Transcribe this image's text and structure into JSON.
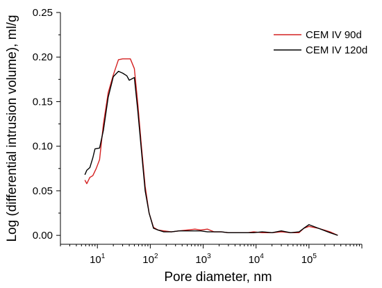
{
  "chart_data": {
    "type": "line",
    "title": "",
    "xlabel": "Pore diameter, nm",
    "ylabel": "Log (differential intrusion volume), ml/g",
    "x_scale": "log",
    "xlim": [
      2,
      1000000
    ],
    "ylim": [
      -0.01,
      0.25
    ],
    "x_ticks": [
      {
        "value": 10,
        "base": "10",
        "exp": "1"
      },
      {
        "value": 100,
        "base": "10",
        "exp": "2"
      },
      {
        "value": 1000,
        "base": "10",
        "exp": "3"
      },
      {
        "value": 10000,
        "base": "10",
        "exp": "4"
      },
      {
        "value": 100000,
        "base": "10",
        "exp": "5"
      }
    ],
    "y_ticks": [
      {
        "value": 0.0,
        "label": "0.00"
      },
      {
        "value": 0.05,
        "label": "0.05"
      },
      {
        "value": 0.1,
        "label": "0.10"
      },
      {
        "value": 0.15,
        "label": "0.15"
      },
      {
        "value": 0.2,
        "label": "0.20"
      },
      {
        "value": 0.25,
        "label": "0.25"
      }
    ],
    "grid": false,
    "legend_position": "top-right",
    "series": [
      {
        "name": "CEM IV 90d",
        "color": "#d42020",
        "points": [
          [
            5.8,
            0.062
          ],
          [
            6.3,
            0.058
          ],
          [
            7.2,
            0.065
          ],
          [
            8.2,
            0.067
          ],
          [
            9.5,
            0.075
          ],
          [
            11,
            0.085
          ],
          [
            13,
            0.125
          ],
          [
            16,
            0.16
          ],
          [
            20,
            0.18
          ],
          [
            25,
            0.197
          ],
          [
            30,
            0.198
          ],
          [
            36,
            0.198
          ],
          [
            42,
            0.198
          ],
          [
            50,
            0.187
          ],
          [
            58,
            0.148
          ],
          [
            68,
            0.1
          ],
          [
            80,
            0.055
          ],
          [
            95,
            0.025
          ],
          [
            115,
            0.009
          ],
          [
            140,
            0.006
          ],
          [
            180,
            0.005
          ],
          [
            250,
            0.004
          ],
          [
            350,
            0.005
          ],
          [
            500,
            0.006
          ],
          [
            700,
            0.007
          ],
          [
            900,
            0.006
          ],
          [
            1200,
            0.007
          ],
          [
            1600,
            0.004
          ],
          [
            2200,
            0.004
          ],
          [
            3000,
            0.003
          ],
          [
            4000,
            0.003
          ],
          [
            5000,
            0.003
          ],
          [
            7000,
            0.003
          ],
          [
            9000,
            0.004
          ],
          [
            13000,
            0.003
          ],
          [
            20000,
            0.003
          ],
          [
            30000,
            0.004
          ],
          [
            45000,
            0.003
          ],
          [
            65000,
            0.003
          ],
          [
            80000,
            0.008
          ],
          [
            100000,
            0.01
          ],
          [
            150000,
            0.008
          ],
          [
            250000,
            0.004
          ],
          [
            350000,
            0.0
          ]
        ]
      },
      {
        "name": "CEM IV 120d",
        "color": "#000000",
        "points": [
          [
            5.8,
            0.068
          ],
          [
            6.3,
            0.073
          ],
          [
            7.2,
            0.076
          ],
          [
            8.2,
            0.087
          ],
          [
            9.0,
            0.097
          ],
          [
            11,
            0.098
          ],
          [
            13,
            0.118
          ],
          [
            16,
            0.155
          ],
          [
            20,
            0.178
          ],
          [
            25,
            0.184
          ],
          [
            30,
            0.182
          ],
          [
            36,
            0.179
          ],
          [
            40,
            0.174
          ],
          [
            50,
            0.177
          ],
          [
            58,
            0.14
          ],
          [
            68,
            0.095
          ],
          [
            80,
            0.05
          ],
          [
            95,
            0.025
          ],
          [
            115,
            0.008
          ],
          [
            140,
            0.006
          ],
          [
            180,
            0.004
          ],
          [
            250,
            0.004
          ],
          [
            350,
            0.005
          ],
          [
            500,
            0.005
          ],
          [
            700,
            0.005
          ],
          [
            900,
            0.005
          ],
          [
            1200,
            0.004
          ],
          [
            1600,
            0.004
          ],
          [
            2200,
            0.004
          ],
          [
            3000,
            0.003
          ],
          [
            4000,
            0.003
          ],
          [
            5000,
            0.003
          ],
          [
            7000,
            0.003
          ],
          [
            9000,
            0.003
          ],
          [
            13000,
            0.004
          ],
          [
            20000,
            0.003
          ],
          [
            30000,
            0.005
          ],
          [
            45000,
            0.003
          ],
          [
            65000,
            0.004
          ],
          [
            80000,
            0.008
          ],
          [
            100000,
            0.012
          ],
          [
            150000,
            0.008
          ],
          [
            250000,
            0.003
          ],
          [
            350000,
            0.0
          ]
        ]
      }
    ]
  }
}
